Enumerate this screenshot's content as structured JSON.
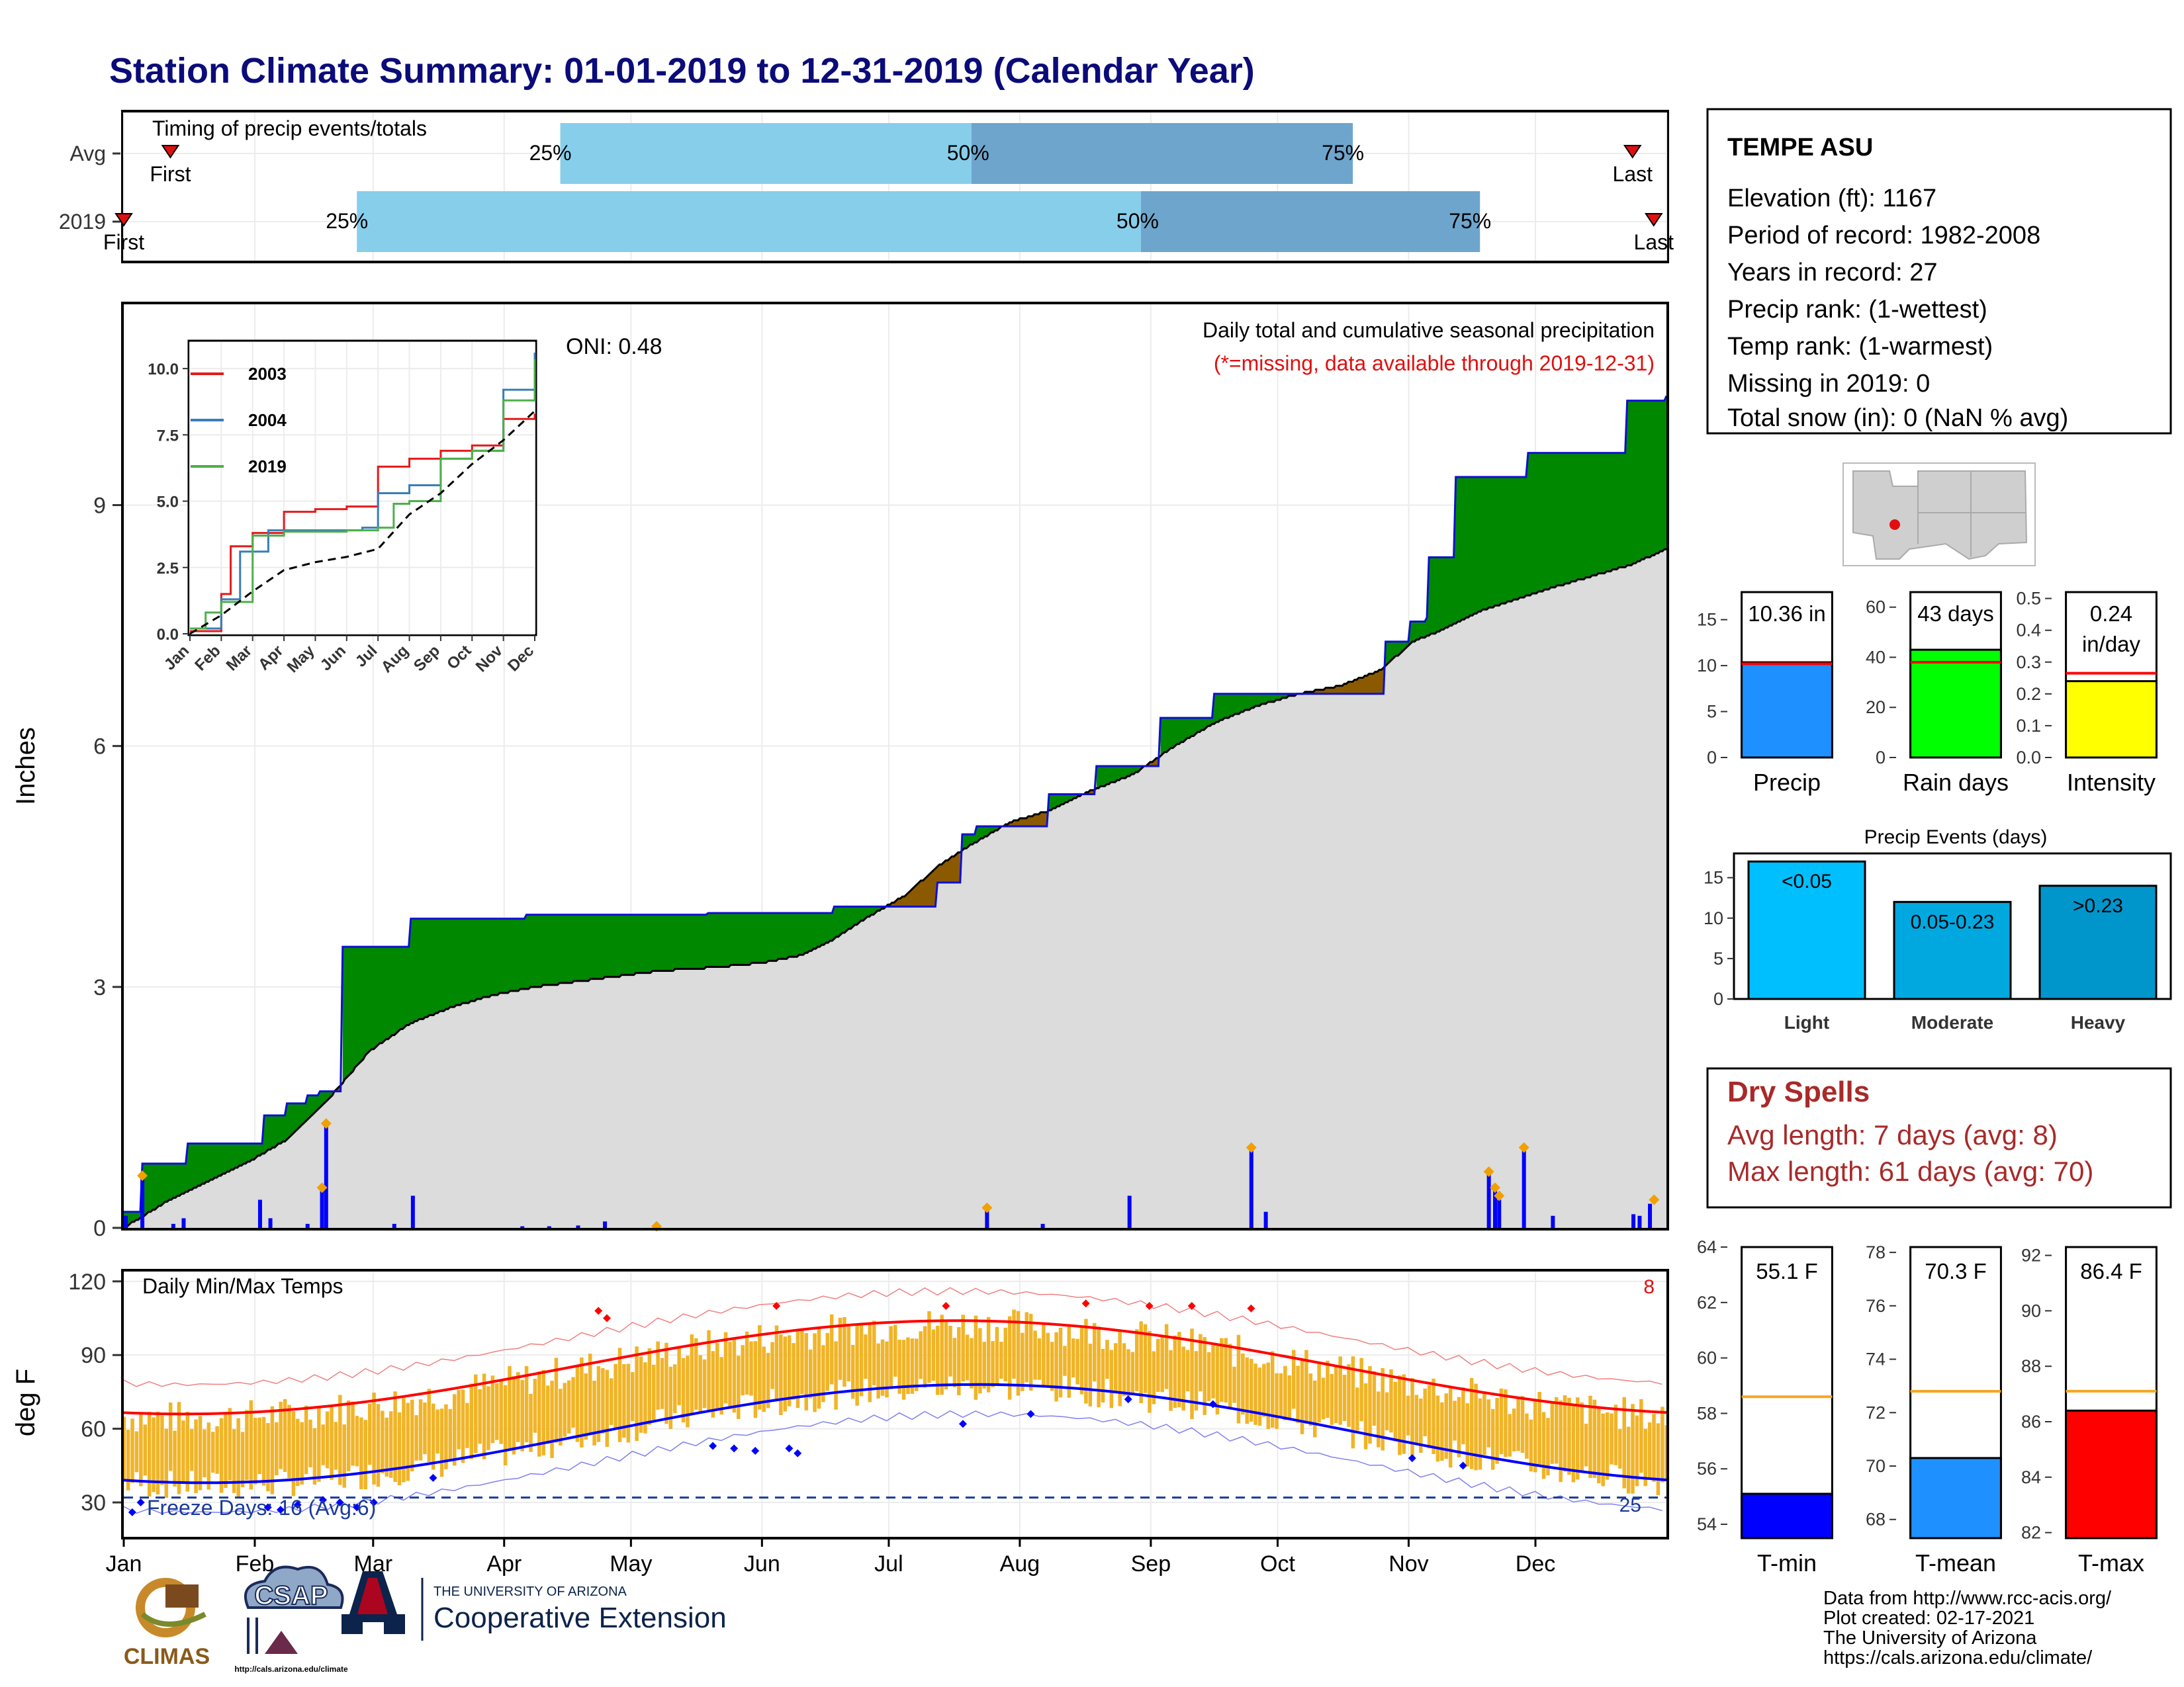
{
  "title": "Station Climate Summary: 01-01-2019 to 12-31-2019 (Calendar Year)",
  "colors": {
    "title": "#0b0b7a",
    "green_fill": "#008800",
    "brown_fill": "#8b5a00",
    "gray_fill": "#dcdcdc",
    "blue_line": "#1010d0",
    "light_blue": "#87ceeb",
    "mid_blue": "#6ea5cc",
    "orange": "#f0a000",
    "temp_bar": "#f0b428",
    "red": "#e01010",
    "dry_red": "#a82a2a"
  },
  "timing": {
    "label": "Timing of precip events/totals",
    "rows": [
      {
        "name": "Avg",
        "first_label": "First",
        "last_label": "Last",
        "first_doy": 12,
        "last_doy": 357,
        "q25": 104,
        "q50": 201,
        "q75": 291,
        "q25_label": "25%",
        "q50_label": "50%",
        "q75_label": "75%"
      },
      {
        "name": "2019",
        "first_label": "First",
        "last_label": "Last",
        "first_doy": 1,
        "last_doy": 362,
        "q25": 56,
        "q50": 241,
        "q75": 321,
        "q25_label": "25%",
        "q50_label": "50%",
        "q75_label": "75%"
      }
    ]
  },
  "precip_panel": {
    "ylabel": "Inches",
    "yticks": [
      "0",
      "3",
      "6",
      "9"
    ],
    "oni_label": "ONI: 0.48",
    "note1": "Daily total and cumulative seasonal precipitation",
    "note2": "(*=missing, data available through 2019-12-31)"
  },
  "inset": {
    "yticks": [
      "0.0",
      "2.5",
      "5.0",
      "7.5",
      "10.0"
    ],
    "xticks": [
      "Jan",
      "Feb",
      "Mar",
      "Apr",
      "May",
      "Jun",
      "Jul",
      "Aug",
      "Sep",
      "Oct",
      "Nov",
      "Dec"
    ],
    "legend": [
      {
        "label": "2003",
        "color": "#e41a1c"
      },
      {
        "label": "2004",
        "color": "#377eb8"
      },
      {
        "label": "2019",
        "color": "#4daf4a"
      }
    ]
  },
  "temp_panel": {
    "ylabel": "deg F",
    "yticks": [
      "30",
      "60",
      "90",
      "120"
    ],
    "label": "Daily Min/Max Temps",
    "hot_count": "8",
    "freeze_label": "Freeze Days: 16 (Avg:6)",
    "cold_count": "25"
  },
  "months": [
    "Jan",
    "Feb",
    "Mar",
    "Apr",
    "May",
    "Jun",
    "Jul",
    "Aug",
    "Sep",
    "Oct",
    "Nov",
    "Dec"
  ],
  "station": {
    "name": "TEMPE ASU",
    "lines": [
      "Elevation (ft): 1167",
      "Period of record: 1982-2008",
      "Years in record: 27",
      "Precip rank:  (1-wettest)",
      "Temp rank:  (1-warmest)",
      "Missing in 2019: 0",
      "Total snow (in): 0 (NaN % avg)"
    ]
  },
  "dry_spells": {
    "title": "Dry Spells",
    "line1": "Avg length: 7 days (avg: 8)",
    "line2": "Max length: 61 days (avg: 70)"
  },
  "events_title": "Precip Events (days)",
  "footer": {
    "lines": [
      "Data from http://www.rcc-acis.org/",
      "Plot created: 02-17-2021",
      "The University of Arizona",
      "https://cals.arizona.edu/climate/"
    ]
  },
  "logos": {
    "climas": "CLIMAS",
    "csap": "CSAP",
    "csap_url": "http://cals.arizona.edu/climate",
    "ua_small": "THE UNIVERSITY OF ARIZONA",
    "ua_big": "Cooperative Extension"
  },
  "chart_data": [
    {
      "type": "area",
      "name": "cumulative-precip",
      "x_unit": "day of year",
      "ylim": [
        0,
        11.5
      ],
      "observed_2019": [
        [
          1,
          0.2
        ],
        [
          10,
          0.8
        ],
        [
          22,
          0.8
        ],
        [
          32,
          1.05
        ],
        [
          68,
          1.05
        ],
        [
          69,
          1.4
        ],
        [
          80,
          1.55
        ],
        [
          90,
          1.65
        ],
        [
          96,
          1.7
        ],
        [
          107,
          3.5
        ],
        [
          139,
          3.5
        ],
        [
          140,
          3.85
        ],
        [
          195,
          3.85
        ],
        [
          196,
          3.9
        ],
        [
          260,
          3.9
        ],
        [
          284,
          3.92
        ],
        [
          345,
          4.0
        ],
        [
          394,
          4.0
        ],
        [
          395,
          4.3
        ],
        [
          406,
          4.3
        ],
        [
          407,
          4.9
        ],
        [
          414,
          5.0
        ],
        [
          448,
          5.0
        ],
        [
          449,
          5.4
        ],
        [
          471,
          5.4
        ],
        [
          472,
          5.75
        ],
        [
          502,
          5.75
        ],
        [
          503,
          6.35
        ],
        [
          528,
          6.35
        ],
        [
          529,
          6.65
        ],
        [
          611,
          6.65
        ],
        [
          612,
          7.3
        ],
        [
          624,
          7.55
        ],
        [
          632,
          7.6
        ],
        [
          633,
          8.35
        ],
        [
          645,
          8.35
        ],
        [
          646,
          9.35
        ],
        [
          680,
          9.35
        ],
        [
          681,
          9.65
        ],
        [
          728,
          9.65
        ],
        [
          729,
          10.3
        ],
        [
          747,
          10.3
        ],
        [
          748,
          10.36
        ]
      ],
      "average_cumulative": [
        [
          1,
          0.0
        ],
        [
          20,
          0.3
        ],
        [
          40,
          0.55
        ],
        [
          60,
          0.8
        ],
        [
          80,
          1.1
        ],
        [
          100,
          1.6
        ],
        [
          120,
          2.2
        ],
        [
          140,
          2.55
        ],
        [
          160,
          2.75
        ],
        [
          180,
          2.9
        ],
        [
          200,
          3.0
        ],
        [
          230,
          3.1
        ],
        [
          260,
          3.2
        ],
        [
          290,
          3.25
        ],
        [
          310,
          3.3
        ],
        [
          330,
          3.4
        ],
        [
          345,
          3.6
        ],
        [
          360,
          3.85
        ],
        [
          380,
          4.15
        ],
        [
          395,
          4.5
        ],
        [
          410,
          4.75
        ],
        [
          430,
          5.05
        ],
        [
          450,
          5.2
        ],
        [
          470,
          5.45
        ],
        [
          490,
          5.65
        ],
        [
          510,
          6.0
        ],
        [
          530,
          6.3
        ],
        [
          550,
          6.5
        ],
        [
          570,
          6.65
        ],
        [
          590,
          6.75
        ],
        [
          610,
          6.95
        ],
        [
          625,
          7.3
        ],
        [
          640,
          7.45
        ],
        [
          660,
          7.7
        ],
        [
          690,
          7.95
        ],
        [
          710,
          8.1
        ],
        [
          730,
          8.25
        ],
        [
          748,
          8.45
        ]
      ],
      "daily_bars": [
        [
          2,
          0.15
        ],
        [
          10,
          0.65
        ],
        [
          25,
          0.05
        ],
        [
          30,
          0.12
        ],
        [
          67,
          0.35
        ],
        [
          72,
          0.12
        ],
        [
          90,
          0.05
        ],
        [
          97,
          0.5
        ],
        [
          99,
          1.3
        ],
        [
          132,
          0.05
        ],
        [
          141,
          0.4
        ],
        [
          194,
          0.02
        ],
        [
          207,
          0.02
        ],
        [
          221,
          0.03
        ],
        [
          234,
          0.08
        ],
        [
          419,
          0.25
        ],
        [
          446,
          0.05
        ],
        [
          488,
          0.4
        ],
        [
          547,
          1.0
        ],
        [
          554,
          0.2
        ],
        [
          662,
          0.7
        ],
        [
          665,
          0.5
        ],
        [
          667,
          0.35
        ],
        [
          679,
          1.0
        ],
        [
          693,
          0.15
        ],
        [
          732,
          0.17
        ],
        [
          735,
          0.15
        ],
        [
          740,
          0.3
        ]
      ],
      "orange_markers": [
        [
          10,
          0.65
        ],
        [
          97,
          0.5
        ],
        [
          99,
          1.3
        ],
        [
          259,
          0.02
        ],
        [
          419,
          0.25
        ],
        [
          547,
          1.0
        ],
        [
          662,
          0.7
        ],
        [
          665,
          0.5
        ],
        [
          667,
          0.4
        ],
        [
          679,
          1.0
        ],
        [
          742,
          0.35
        ]
      ]
    },
    {
      "type": "line",
      "name": "inset-cumulative",
      "x": "month index 1-12",
      "ylim": [
        0,
        11
      ],
      "series": [
        {
          "name": "2003",
          "values": [
            [
              1,
              0.1
            ],
            [
              2,
              1.5
            ],
            [
              2.3,
              3.3
            ],
            [
              3,
              3.8
            ],
            [
              4,
              4.6
            ],
            [
              5,
              4.7
            ],
            [
              6,
              4.8
            ],
            [
              7,
              6.3
            ],
            [
              8,
              6.6
            ],
            [
              9,
              6.9
            ],
            [
              10,
              7.1
            ],
            [
              11,
              8.1
            ],
            [
              12,
              8.3
            ]
          ]
        },
        {
          "name": "2004",
          "values": [
            [
              1,
              0.2
            ],
            [
              2,
              1.3
            ],
            [
              2.6,
              3.1
            ],
            [
              3.5,
              3.9
            ],
            [
              5,
              3.9
            ],
            [
              6.5,
              4.0
            ],
            [
              7,
              5.3
            ],
            [
              8,
              5.6
            ],
            [
              9,
              6.6
            ],
            [
              10,
              6.9
            ],
            [
              11,
              9.2
            ],
            [
              12,
              10.6
            ]
          ]
        },
        {
          "name": "2019",
          "values": [
            [
              1,
              0.2
            ],
            [
              1.5,
              0.8
            ],
            [
              2,
              1.2
            ],
            [
              3,
              3.7
            ],
            [
              4,
              3.85
            ],
            [
              6,
              3.9
            ],
            [
              7,
              4.0
            ],
            [
              7.5,
              4.9
            ],
            [
              8,
              5.0
            ],
            [
              9,
              6.6
            ],
            [
              10,
              6.9
            ],
            [
              11,
              8.8
            ],
            [
              12,
              10.36
            ]
          ]
        },
        {
          "name": "average",
          "values": [
            [
              1,
              0.0
            ],
            [
              2,
              0.7
            ],
            [
              3,
              1.6
            ],
            [
              4,
              2.4
            ],
            [
              5,
              2.7
            ],
            [
              6,
              2.9
            ],
            [
              7,
              3.2
            ],
            [
              8,
              4.5
            ],
            [
              9,
              5.3
            ],
            [
              10,
              6.4
            ],
            [
              11,
              7.3
            ],
            [
              12,
              8.4
            ]
          ]
        }
      ]
    },
    {
      "type": "bar",
      "name": "summary-precip",
      "categories": [
        "Precip"
      ],
      "values": [
        10.36
      ],
      "avg": [
        10.2
      ],
      "ylim": [
        0,
        18
      ],
      "yticks": [
        "0",
        "5",
        "10",
        "15"
      ],
      "label": "10.36 in",
      "xlabel": "Precip",
      "color": "#1e90ff"
    },
    {
      "type": "bar",
      "name": "summary-rain-days",
      "categories": [
        "Rain days"
      ],
      "values": [
        43
      ],
      "avg": [
        38
      ],
      "ylim": [
        0,
        66
      ],
      "yticks": [
        "0",
        "20",
        "40",
        "60"
      ],
      "label": "43 days",
      "xlabel": "Rain days",
      "color": "#00ff00"
    },
    {
      "type": "bar",
      "name": "summary-intensity",
      "categories": [
        "Intensity"
      ],
      "values": [
        0.24
      ],
      "avg": [
        0.265
      ],
      "ylim": [
        0,
        0.52
      ],
      "yticks": [
        "0.0",
        "0.1",
        "0.2",
        "0.3",
        "0.4",
        "0.5"
      ],
      "label": "0.24",
      "label2": "in/day",
      "xlabel": "Intensity",
      "color": "#ffff00"
    },
    {
      "type": "bar",
      "name": "precip-events",
      "categories": [
        "Light",
        "Moderate",
        "Heavy"
      ],
      "values": [
        17,
        12,
        14
      ],
      "labels": [
        "<0.05",
        "0.05-0.23",
        ">0.23"
      ],
      "ylim": [
        0,
        18
      ],
      "yticks": [
        "0",
        "5",
        "10",
        "15"
      ],
      "colors": [
        "#00bfff",
        "#00a8e0",
        "#0096cc"
      ]
    },
    {
      "type": "bar",
      "name": "summary-tmin",
      "categories": [
        "T-min"
      ],
      "values": [
        55.1
      ],
      "avg": [
        58.6
      ],
      "ylim": [
        53.5,
        64
      ],
      "yticks": [
        "54",
        "56",
        "58",
        "60",
        "62",
        "64"
      ],
      "label": "55.1 F",
      "xlabel": "T-min",
      "color": "#0000ff"
    },
    {
      "type": "bar",
      "name": "summary-tmean",
      "categories": [
        "T-mean"
      ],
      "values": [
        70.3
      ],
      "avg": [
        72.8
      ],
      "ylim": [
        67.3,
        78.2
      ],
      "yticks": [
        "68",
        "70",
        "72",
        "74",
        "76",
        "78"
      ],
      "label": "70.3 F",
      "xlabel": "T-mean",
      "color": "#1e90ff"
    },
    {
      "type": "bar",
      "name": "summary-tmax",
      "categories": [
        "T-max"
      ],
      "values": [
        86.4
      ],
      "avg": [
        87.1
      ],
      "ylim": [
        81.8,
        92.3
      ],
      "yticks": [
        "82",
        "84",
        "86",
        "88",
        "90",
        "92"
      ],
      "label": "86.4 F",
      "xlabel": "T-max",
      "color": "#ff0000"
    }
  ]
}
